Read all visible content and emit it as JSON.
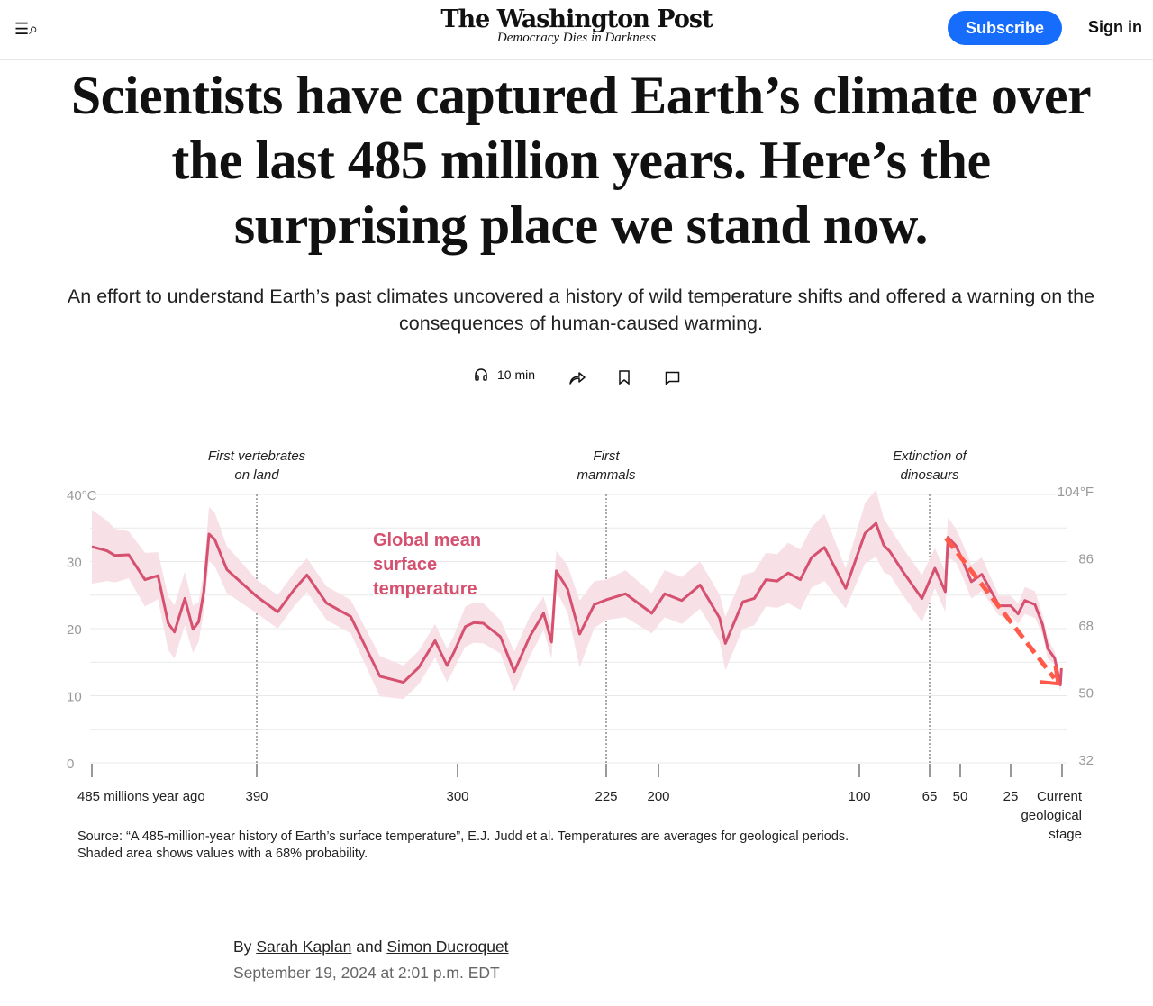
{
  "header": {
    "menu_icon": "menu-search-icon",
    "logo_name": "The Washington Post",
    "logo_tagline": "Democracy Dies in Darkness",
    "subscribe_label": "Subscribe",
    "signin_label": "Sign in",
    "accent": "#166dfc"
  },
  "article": {
    "headline": "Scientists have captured Earth’s climate over the last 485 million years. Here’s the surprising place we stand now.",
    "dek": "An effort to understand Earth’s past climates uncovered a history of wild temperature shifts and offered a warning on the consequences of human-caused warming.",
    "listen_label": "10 min",
    "byline_prefix": "By",
    "author1": "Sarah Kaplan",
    "byline_and": "and",
    "author2": "Simon Ducroquet",
    "date": "September 19, 2024 at 2:01 p.m. EDT",
    "source": "Source: “A 485-million-year history of Earth’s surface temperature”, E.J. Judd et al. Temperatures are averages for geological periods. Shaded area shows values with a 68% probability."
  },
  "chart_data": {
    "type": "line",
    "series_label": "Global mean surface temperature",
    "line_color": "#d6506f",
    "band_color": "#f7e1e7",
    "arrow_color": "#ff5a4a",
    "xlabel": "",
    "x_ticks": [
      {
        "value": 485,
        "label": "485 millions year ago"
      },
      {
        "value": 390,
        "label": "390"
      },
      {
        "value": 300,
        "label": "300"
      },
      {
        "value": 225,
        "label": "225"
      },
      {
        "value": 200,
        "label": "200"
      },
      {
        "value": 100,
        "label": "100"
      },
      {
        "value": 65,
        "label": "65"
      },
      {
        "value": 50,
        "label": "50"
      },
      {
        "value": 25,
        "label": "25"
      },
      {
        "value": 0,
        "label": "Current geological stage"
      }
    ],
    "ylim": [
      0,
      40
    ],
    "y_ticks_left": [
      {
        "value": 0,
        "label": "0"
      },
      {
        "value": 10,
        "label": "10"
      },
      {
        "value": 20,
        "label": "20"
      },
      {
        "value": 30,
        "label": "30"
      },
      {
        "value": 40,
        "label": "40°C"
      }
    ],
    "y_ticks_right": [
      {
        "value": 0,
        "label": "32"
      },
      {
        "value": 10,
        "label": "50"
      },
      {
        "value": 20,
        "label": "68"
      },
      {
        "value": 30,
        "label": "86"
      },
      {
        "value": 40,
        "label": "104°F"
      }
    ],
    "gridlines": [
      0,
      5,
      10,
      15,
      20,
      25,
      30,
      35,
      40
    ],
    "events": [
      {
        "age": 390,
        "label": "First vertebrates on land"
      },
      {
        "age": 225,
        "label": "First mammals"
      },
      {
        "age": 65,
        "label": "Extinction of dinosaurs"
      }
    ],
    "arrow": {
      "from": {
        "age": 57,
        "temp": 33.5
      },
      "to": {
        "age": 2,
        "temp": 11.8
      }
    },
    "age": [
      485,
      476.3,
      471.7,
      463.8,
      454.4,
      446.9,
      441,
      437.4,
      431.4,
      426.7,
      423.5,
      420.5,
      417.5,
      414.2,
      407.2,
      390,
      380.6,
      373.3,
      367.5,
      358.7,
      347.9,
      334.8,
      324.3,
      317.4,
      310.1,
      304.7,
      301.6,
      296.1,
      291.8,
      287,
      278.4,
      271.4,
      263.6,
      256.6,
      252.6,
      250.2,
      244.5,
      238.4,
      231,
      225,
      215.8,
      203.2,
      196.9,
      188.4,
      179.3,
      169.6,
      166.7,
      158,
      152.3,
      146.5,
      140.9,
      135.4,
      129.4,
      123.8,
      117.4,
      106.8,
      97.2,
      91.7,
      87.8,
      84.8,
      78.3,
      68.8,
      62.4,
      57.3,
      56,
      52.2,
      49.1,
      44.5,
      39.3,
      30.7,
      25,
      21.4,
      18.1,
      13.2,
      9.5,
      6.9,
      3.6,
      0.8,
      0.3
    ],
    "temp": [
      32.2,
      31.6,
      30.9,
      31,
      27.3,
      27.9,
      20.8,
      19.5,
      24.5,
      19.9,
      21,
      25.5,
      34.1,
      33.3,
      28.8,
      24.8,
      22.5,
      25.8,
      28,
      23.8,
      21.8,
      12.9,
      12,
      14.2,
      18.2,
      14.5,
      16.5,
      20.3,
      20.9,
      20.8,
      18.8,
      13.6,
      18.8,
      22.3,
      18,
      28.6,
      25.9,
      19.2,
      23.6,
      24.3,
      25.2,
      22.3,
      25.2,
      24.2,
      26.5,
      21.6,
      17.8,
      24,
      24.5,
      27.3,
      27.1,
      28.3,
      27.3,
      30.6,
      32.1,
      26,
      34.2,
      35.7,
      32.4,
      31.5,
      28.5,
      24.5,
      29,
      25.5,
      33.6,
      32.4,
      30.4,
      27,
      28.1,
      23.4,
      23.4,
      22.2,
      24.2,
      23.6,
      20.6,
      17,
      15.6,
      11.6,
      14.1
    ],
    "uncertainty": [
      5.5,
      4.5,
      4,
      3.5,
      4,
      3.5,
      4,
      4,
      4,
      3.5,
      3,
      3,
      4,
      4,
      3.5,
      2.5,
      2.5,
      2.5,
      2.5,
      2.5,
      2.5,
      3,
      2.5,
      2.5,
      2.5,
      2.5,
      2.5,
      3,
      3,
      3,
      2.5,
      3,
      3,
      2.5,
      2.5,
      3,
      3.5,
      5,
      3.5,
      3,
      3.5,
      3,
      3.5,
      3.5,
      3.5,
      3.5,
      4,
      4,
      4,
      4,
      4,
      4.5,
      4.5,
      4.5,
      5,
      3,
      4.5,
      5,
      4,
      3.5,
      3.5,
      3.5,
      3,
      3,
      3,
      2.5,
      2.5,
      2.5,
      2.5,
      1.5,
      1.5,
      1.5,
      2,
      2,
      1.5,
      1.5,
      1,
      1,
      1
    ]
  }
}
